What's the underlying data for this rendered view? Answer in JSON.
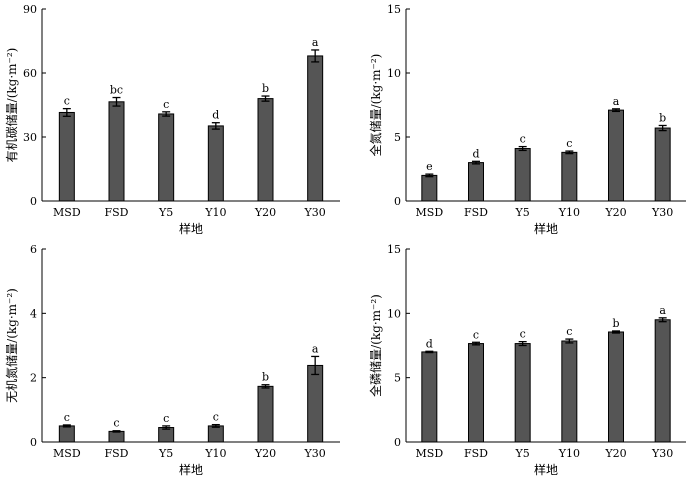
{
  "chart_data": [
    {
      "type": "bar",
      "ylabel": "有机碳储量/(kg·m⁻²)",
      "xlabel": "样地",
      "categories": [
        "MSD",
        "FSD",
        "Y5",
        "Y10",
        "Y20",
        "Y30"
      ],
      "values": [
        41.5,
        46.5,
        40.8,
        35.2,
        48.0,
        68.0
      ],
      "errors": [
        1.8,
        2.0,
        1.0,
        1.5,
        1.2,
        2.8
      ],
      "letters": [
        "c",
        "bc",
        "c",
        "d",
        "b",
        "a"
      ],
      "ylim": [
        0,
        90
      ],
      "yticks": [
        0,
        30,
        60,
        90
      ],
      "bar_color": "#555555"
    },
    {
      "type": "bar",
      "ylabel": "全氮储量/(kg·m⁻²)",
      "xlabel": "样地",
      "categories": [
        "MSD",
        "FSD",
        "Y5",
        "Y10",
        "Y20",
        "Y30"
      ],
      "values": [
        2.0,
        3.0,
        4.1,
        3.8,
        7.1,
        5.7
      ],
      "errors": [
        0.1,
        0.1,
        0.15,
        0.1,
        0.1,
        0.2
      ],
      "letters": [
        "e",
        "d",
        "c",
        "c",
        "a",
        "b"
      ],
      "ylim": [
        0,
        15
      ],
      "yticks": [
        0,
        5,
        10,
        15
      ],
      "bar_color": "#555555"
    },
    {
      "type": "bar",
      "ylabel": "无机氮储量/(kg·m⁻²)",
      "xlabel": "样地",
      "categories": [
        "MSD",
        "FSD",
        "Y5",
        "Y10",
        "Y20",
        "Y30"
      ],
      "values": [
        0.5,
        0.33,
        0.45,
        0.5,
        1.73,
        2.38
      ],
      "errors": [
        0.03,
        0.02,
        0.05,
        0.04,
        0.05,
        0.28
      ],
      "letters": [
        "c",
        "c",
        "c",
        "c",
        "b",
        "a"
      ],
      "ylim": [
        0,
        6
      ],
      "yticks": [
        0,
        2,
        4,
        6
      ],
      "bar_color": "#555555"
    },
    {
      "type": "bar",
      "ylabel": "全磷储量/(kg·m⁻²)",
      "xlabel": "样地",
      "categories": [
        "MSD",
        "FSD",
        "Y5",
        "Y10",
        "Y20",
        "Y30"
      ],
      "values": [
        7.0,
        7.65,
        7.65,
        7.85,
        8.55,
        9.5
      ],
      "errors": [
        0.05,
        0.1,
        0.15,
        0.15,
        0.08,
        0.15
      ],
      "letters": [
        "d",
        "c",
        "c",
        "c",
        "b",
        "a"
      ],
      "ylim": [
        0,
        15
      ],
      "yticks": [
        0,
        5,
        10,
        15
      ],
      "bar_color": "#555555"
    }
  ]
}
